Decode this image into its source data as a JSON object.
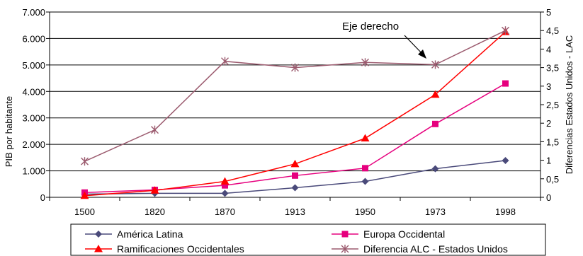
{
  "chart_data": {
    "type": "line",
    "categories": [
      "1500",
      "1820",
      "1870",
      "1913",
      "1950",
      "1973",
      "1998"
    ],
    "ylabel": "PIB por habitante",
    "y2label": "Diferencias Estados Unidos - LAC",
    "ylim": [
      0,
      7000
    ],
    "y2lim": [
      0,
      5
    ],
    "yticks": [
      "0",
      "1.000",
      "2.000",
      "3.000",
      "4.000",
      "5.000",
      "6.000",
      "7.000"
    ],
    "y2ticks": [
      "0",
      "0,5",
      "1",
      "1,5",
      "2",
      "2,5",
      "3",
      "3,5",
      "4",
      "4,5",
      "5"
    ],
    "grid": "horizontal",
    "legend_position": "bottom",
    "annotation": "Eje derecho",
    "series": [
      {
        "name": "América Latina",
        "axis": "left",
        "color": "#4a4a7a",
        "marker": "diamond",
        "values": [
          120,
          150,
          150,
          360,
          600,
          1080,
          1390
        ]
      },
      {
        "name": "Europa Occidental",
        "axis": "left",
        "color": "#e6007e",
        "marker": "square",
        "values": [
          180,
          280,
          450,
          820,
          1100,
          2770,
          4300
        ]
      },
      {
        "name": "Ramificaciones Occidentales",
        "axis": "left",
        "color": "#ff0000",
        "marker": "triangle",
        "values": [
          60,
          260,
          600,
          1260,
          2230,
          3880,
          6250
        ]
      },
      {
        "name": "Diferencia ALC - Estados Unidos",
        "axis": "right",
        "color": "#9b5a6e",
        "marker": "star",
        "values": [
          0.97,
          1.82,
          3.67,
          3.5,
          3.64,
          3.58,
          4.5
        ]
      }
    ]
  }
}
